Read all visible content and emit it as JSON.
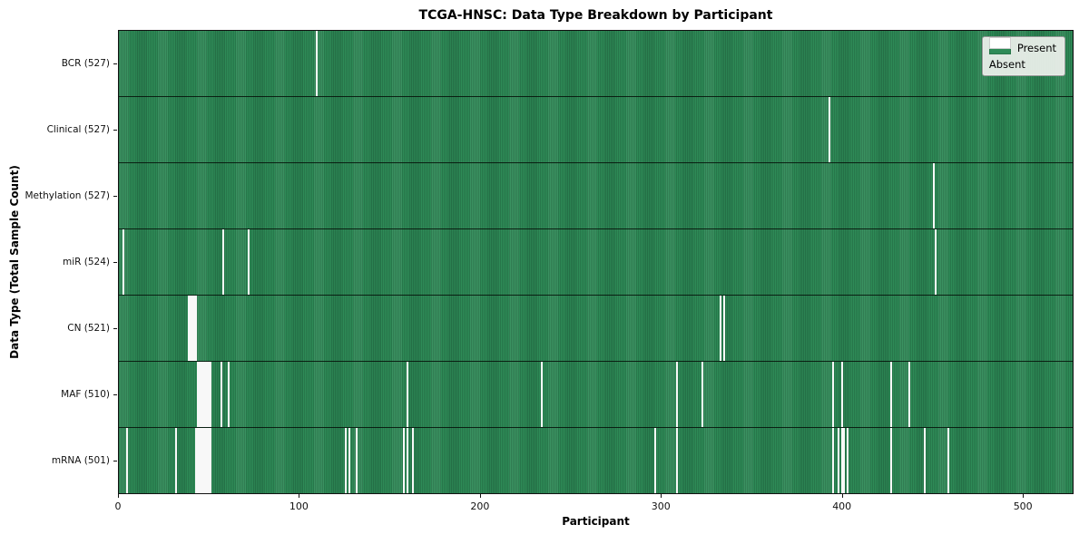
{
  "title": "TCGA-HNSC: Data Type Breakdown by Participant",
  "legend": {
    "present_label": "Present",
    "absent_label": "Absent",
    "position": "upper right"
  },
  "colors": {
    "present": "#2e8b57",
    "present_stripe_dark": "#20613d",
    "absent": "#f8f8f8",
    "figure_background": "#ffffff",
    "legend_background": "#e9eee9"
  },
  "chart_data": {
    "type": "heatmap",
    "title": "TCGA-HNSC: Data Type Breakdown by Participant",
    "xlabel": "Participant",
    "ylabel": "Data Type (Total Sample Count)",
    "x_ticks": [
      0,
      100,
      200,
      300,
      400,
      500
    ],
    "xlim": [
      0,
      528
    ],
    "n_participants": 528,
    "grid": false,
    "legend_entries": [
      "Present",
      "Absent"
    ],
    "legend_position": "upper right",
    "rows": [
      {
        "label": "BCR (527)",
        "total_samples": 527,
        "absent_participants": [
          109
        ]
      },
      {
        "label": "Clinical (527)",
        "total_samples": 527,
        "absent_participants": [
          392
        ]
      },
      {
        "label": "Methylation (527)",
        "total_samples": 527,
        "absent_participants": [
          450
        ]
      },
      {
        "label": "miR (524)",
        "total_samples": 524,
        "absent_participants": [
          2,
          57,
          71,
          451
        ]
      },
      {
        "label": "CN (521)",
        "total_samples": 521,
        "absent_participants": [
          38,
          39,
          40,
          41,
          42,
          332,
          334
        ]
      },
      {
        "label": "MAF (510)",
        "total_samples": 510,
        "absent_participants": [
          43,
          44,
          45,
          46,
          47,
          48,
          49,
          50,
          56,
          60,
          159,
          233,
          308,
          322,
          394,
          399,
          426,
          436
        ]
      },
      {
        "label": "mRNA (501)",
        "total_samples": 501,
        "absent_participants": [
          4,
          31,
          42,
          43,
          44,
          45,
          46,
          47,
          48,
          49,
          50,
          125,
          127,
          131,
          157,
          159,
          162,
          296,
          308,
          394,
          397,
          399,
          400,
          402,
          426,
          445,
          458
        ]
      }
    ]
  }
}
